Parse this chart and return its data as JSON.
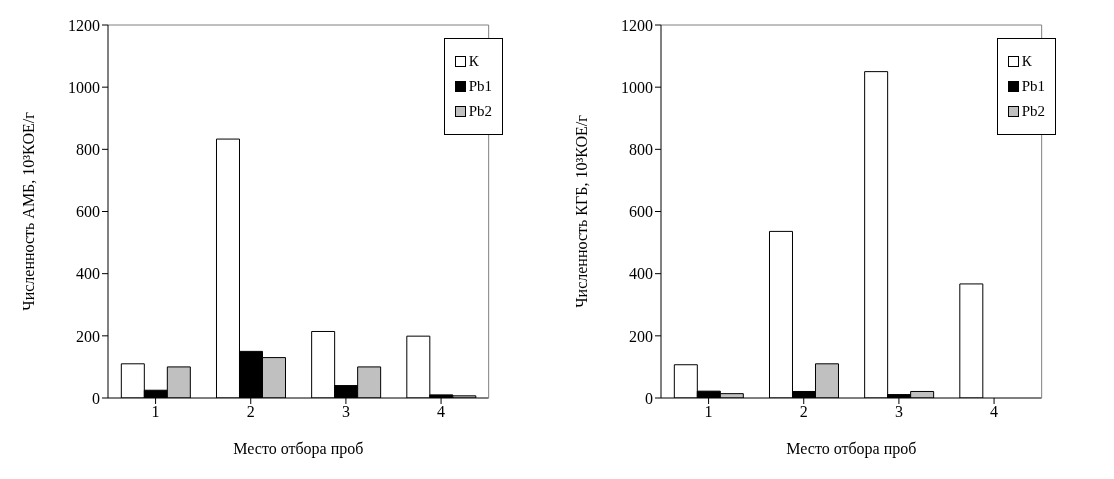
{
  "chart_data": [
    {
      "type": "bar",
      "xlabel": "Место отбора проб",
      "ylabel": "Численность АМБ, 10³КОЕ/г",
      "categories": [
        "1",
        "2",
        "3",
        "4"
      ],
      "series": [
        {
          "name": "К",
          "color": "#ffffff",
          "values": [
            110,
            833,
            214,
            199
          ]
        },
        {
          "name": "Pb1",
          "color": "#000000",
          "values": [
            25,
            150,
            40,
            10
          ]
        },
        {
          "name": "Pb2",
          "color": "#c0c0c0",
          "values": [
            100,
            130,
            100,
            7
          ]
        }
      ],
      "ylim": [
        0,
        1200
      ],
      "yticks": [
        0,
        200,
        400,
        600,
        800,
        1000,
        1200
      ],
      "grid": false,
      "legend": "top right"
    },
    {
      "type": "bar",
      "xlabel": "Место отбора проб",
      "ylabel": "Численность КГБ, 10³КОЕ/г",
      "categories": [
        "1",
        "2",
        "3",
        "4"
      ],
      "series": [
        {
          "name": "К",
          "color": "#ffffff",
          "values": [
            107,
            536,
            1050,
            367
          ]
        },
        {
          "name": "Pb1",
          "color": "#000000",
          "values": [
            22,
            21,
            11,
            null
          ]
        },
        {
          "name": "Pb2",
          "color": "#c0c0c0",
          "values": [
            14,
            110,
            21,
            null
          ]
        }
      ],
      "ylim": [
        0,
        1200
      ],
      "yticks": [
        0,
        200,
        400,
        600,
        800,
        1000,
        1200
      ],
      "grid": false,
      "legend": "top right"
    }
  ]
}
